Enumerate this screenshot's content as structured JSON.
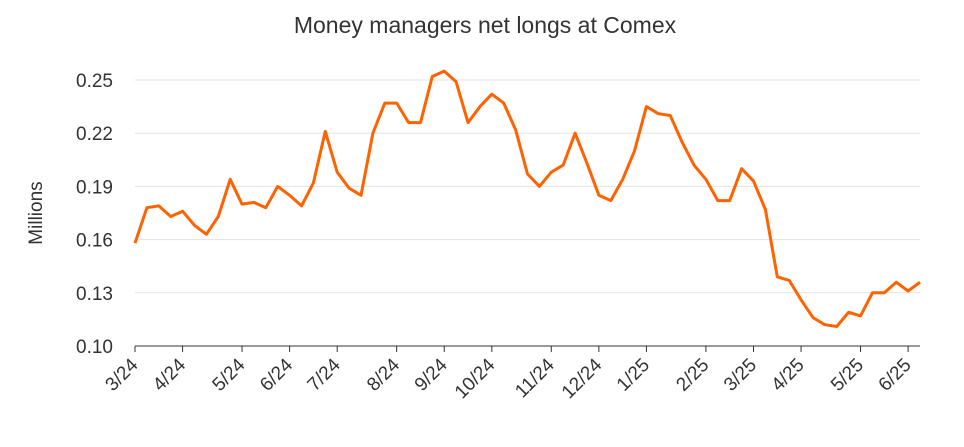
{
  "chart_data": {
    "type": "line",
    "title": "Money managers net longs at Comex",
    "y_label": "Millions",
    "categories": [
      "3/24",
      null,
      null,
      null,
      "4/24",
      null,
      null,
      null,
      null,
      "5/24",
      null,
      null,
      null,
      "6/24",
      null,
      null,
      null,
      "7/24",
      null,
      null,
      null,
      null,
      "8/24",
      null,
      null,
      null,
      "9/24",
      null,
      null,
      null,
      "10/24",
      null,
      null,
      null,
      null,
      "11/24",
      null,
      null,
      null,
      "12/24",
      null,
      null,
      null,
      "1/25",
      null,
      null,
      null,
      null,
      "2/25",
      null,
      null,
      null,
      "3/25",
      null,
      null,
      null,
      "4/25",
      null,
      null,
      null,
      null,
      "5/25",
      null,
      null,
      null,
      "6/25",
      null
    ],
    "series": [
      {
        "name": "Net longs",
        "color": "#ff6200",
        "values": [
          0.158,
          0.178,
          0.179,
          0.173,
          0.176,
          0.168,
          0.163,
          0.173,
          0.194,
          0.18,
          0.181,
          0.178,
          0.19,
          0.185,
          0.179,
          0.192,
          0.221,
          0.198,
          0.189,
          0.185,
          0.22,
          0.237,
          0.237,
          0.226,
          0.226,
          0.252,
          0.255,
          0.249,
          0.226,
          0.235,
          0.242,
          0.237,
          0.222,
          0.197,
          0.19,
          0.198,
          0.202,
          0.22,
          0.203,
          0.185,
          0.182,
          0.194,
          0.21,
          0.235,
          0.231,
          0.23,
          0.215,
          0.202,
          0.194,
          0.182,
          0.182,
          0.2,
          0.193,
          0.177,
          0.139,
          0.137,
          0.126,
          0.116,
          0.112,
          0.111,
          0.119,
          0.117,
          0.13,
          0.13,
          0.136,
          0.131,
          0.136
        ]
      }
    ],
    "ylim": [
      0.1,
      0.25
    ],
    "yticks": [
      {
        "value": 0.1,
        "label": "0.10"
      },
      0.13,
      0.16,
      0.19,
      0.22,
      0.25
    ],
    "grid": true
  }
}
